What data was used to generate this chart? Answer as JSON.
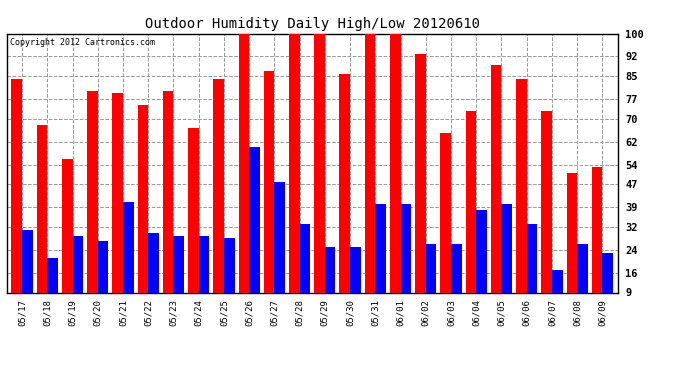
{
  "title": "Outdoor Humidity Daily High/Low 20120610",
  "copyright": "Copyright 2012 Cartronics.com",
  "dates": [
    "05/17",
    "05/18",
    "05/19",
    "05/20",
    "05/21",
    "05/22",
    "05/23",
    "05/24",
    "05/25",
    "05/26",
    "05/27",
    "05/28",
    "05/29",
    "05/30",
    "05/31",
    "06/01",
    "06/02",
    "06/03",
    "06/04",
    "06/05",
    "06/06",
    "06/07",
    "06/08",
    "06/09"
  ],
  "highs": [
    84,
    68,
    56,
    80,
    79,
    75,
    80,
    67,
    84,
    100,
    87,
    100,
    100,
    86,
    100,
    100,
    93,
    65,
    73,
    89,
    84,
    73,
    51,
    53
  ],
  "lows": [
    31,
    21,
    29,
    27,
    41,
    30,
    29,
    29,
    28,
    60,
    48,
    33,
    25,
    25,
    40,
    40,
    26,
    26,
    38,
    40,
    33,
    17,
    26,
    23
  ],
  "high_color": "#ff0000",
  "low_color": "#0000ff",
  "bg_color": "#ffffff",
  "plot_bg_color": "#ffffff",
  "grid_color": "#999999",
  "yticks": [
    9,
    16,
    24,
    32,
    39,
    47,
    54,
    62,
    70,
    77,
    85,
    92,
    100
  ],
  "ymin": 9,
  "ymax": 100,
  "bar_width": 0.42
}
